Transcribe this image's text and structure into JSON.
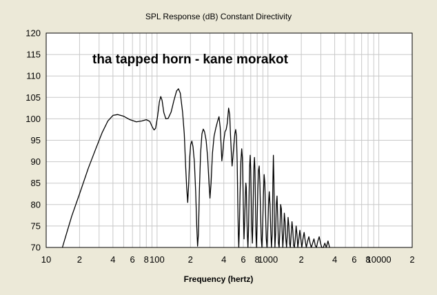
{
  "chart_data": {
    "type": "line",
    "title": "SPL Response (dB)   Constant Directivity",
    "xlabel": "Frequency (hertz)",
    "ylabel": "",
    "annotation": "tha tapped horn - kane morakot",
    "x_scale": "log",
    "xlim": [
      10,
      20000
    ],
    "ylim": [
      70,
      120
    ],
    "grid": true,
    "x_tick_labels": [
      {
        "value": 10,
        "label": "10"
      },
      {
        "value": 20,
        "label": "2"
      },
      {
        "value": 40,
        "label": "4"
      },
      {
        "value": 60,
        "label": "6"
      },
      {
        "value": 80,
        "label": "8"
      },
      {
        "value": 100,
        "label": "100"
      },
      {
        "value": 200,
        "label": "2"
      },
      {
        "value": 400,
        "label": "4"
      },
      {
        "value": 600,
        "label": "6"
      },
      {
        "value": 800,
        "label": "8"
      },
      {
        "value": 1000,
        "label": "1000"
      },
      {
        "value": 2000,
        "label": "2"
      },
      {
        "value": 4000,
        "label": "4"
      },
      {
        "value": 6000,
        "label": "6"
      },
      {
        "value": 8000,
        "label": "8"
      },
      {
        "value": 10000,
        "label": "10000"
      },
      {
        "value": 20000,
        "label": "2"
      }
    ],
    "y_ticks": [
      120,
      115,
      110,
      105,
      100,
      95,
      90,
      85,
      80,
      75,
      70
    ],
    "background_color": "#ffffff",
    "grid_color": "#c8c8c8",
    "line_color": "#000000",
    "series": [
      {
        "values_xy": [
          [
            14.0,
            70.0
          ],
          [
            15.0,
            72.6
          ],
          [
            17.0,
            77.3
          ],
          [
            20.0,
            82.5
          ],
          [
            24.0,
            88.5
          ],
          [
            28.0,
            93.0
          ],
          [
            32.0,
            96.8
          ],
          [
            36.0,
            99.5
          ],
          [
            40.0,
            100.8
          ],
          [
            44.0,
            101.0
          ],
          [
            50.0,
            100.6
          ],
          [
            57.0,
            99.8
          ],
          [
            65.0,
            99.3
          ],
          [
            73.0,
            99.5
          ],
          [
            80.0,
            99.8
          ],
          [
            86.0,
            99.4
          ],
          [
            91.0,
            98.0
          ],
          [
            94.0,
            97.4
          ],
          [
            97.0,
            97.8
          ],
          [
            101.0,
            100.5
          ],
          [
            105.0,
            104.0
          ],
          [
            108.0,
            105.2
          ],
          [
            111.0,
            104.3
          ],
          [
            115.0,
            101.5
          ],
          [
            120.0,
            100.0
          ],
          [
            126.0,
            100.1
          ],
          [
            134.0,
            101.6
          ],
          [
            142.0,
            104.3
          ],
          [
            150.0,
            106.5
          ],
          [
            156.0,
            107.0
          ],
          [
            162.0,
            106.0
          ],
          [
            170.0,
            101.5
          ],
          [
            176.0,
            96.5
          ],
          [
            181.0,
            89.0
          ],
          [
            185.0,
            84.0
          ],
          [
            189.0,
            80.5
          ],
          [
            193.0,
            85.0
          ],
          [
            197.0,
            91.0
          ],
          [
            201.0,
            94.0
          ],
          [
            206.0,
            94.8
          ],
          [
            211.0,
            93.5
          ],
          [
            217.0,
            90.0
          ],
          [
            223.0,
            83.0
          ],
          [
            228.0,
            75.0
          ],
          [
            232.0,
            70.3
          ],
          [
            236.0,
            73.0
          ],
          [
            241.0,
            83.5
          ],
          [
            247.0,
            92.0
          ],
          [
            254.0,
            96.5
          ],
          [
            261.0,
            97.6
          ],
          [
            268.0,
            97.0
          ],
          [
            277.0,
            95.0
          ],
          [
            286.0,
            91.0
          ],
          [
            294.0,
            85.0
          ],
          [
            300.0,
            81.5
          ],
          [
            307.0,
            85.0
          ],
          [
            316.0,
            92.0
          ],
          [
            327.0,
            96.0
          ],
          [
            340.0,
            98.0
          ],
          [
            352.0,
            99.5
          ],
          [
            362.0,
            100.5
          ],
          [
            371.0,
            98.0
          ],
          [
            378.0,
            94.0
          ],
          [
            384.0,
            90.2
          ],
          [
            391.0,
            92.0
          ],
          [
            400.0,
            95.0
          ],
          [
            410.0,
            97.0
          ],
          [
            420.0,
            97.5
          ],
          [
            430.0,
            99.0
          ],
          [
            442.0,
            102.5
          ],
          [
            452.0,
            101.0
          ],
          [
            460.0,
            96.0
          ],
          [
            468.0,
            92.0
          ],
          [
            475.0,
            89.0
          ],
          [
            483.0,
            91.0
          ],
          [
            493.0,
            94.0
          ],
          [
            503.0,
            96.5
          ],
          [
            512.0,
            97.5
          ],
          [
            520.0,
            96.0
          ],
          [
            528.0,
            90.0
          ],
          [
            535.0,
            80.0
          ],
          [
            541.0,
            73.0
          ],
          [
            546.0,
            70.0
          ],
          [
            552.0,
            74.0
          ],
          [
            560.0,
            82.0
          ],
          [
            570.0,
            90.0
          ],
          [
            580.0,
            93.0
          ],
          [
            588.0,
            91.0
          ],
          [
            596.0,
            84.0
          ],
          [
            603.0,
            76.0
          ],
          [
            609.0,
            72.0
          ],
          [
            616.0,
            76.0
          ],
          [
            624.0,
            81.0
          ],
          [
            632.0,
            85.0
          ],
          [
            638.0,
            84.0
          ],
          [
            645.0,
            78.0
          ],
          [
            652.0,
            73.0
          ],
          [
            660.0,
            70.0
          ],
          [
            668.0,
            74.0
          ],
          [
            676.0,
            82.0
          ],
          [
            684.0,
            89.0
          ],
          [
            692.0,
            91.5
          ],
          [
            700.0,
            88.0
          ],
          [
            708.0,
            80.0
          ],
          [
            716.0,
            74.0
          ],
          [
            724.0,
            71.0
          ],
          [
            732.0,
            76.0
          ],
          [
            740.0,
            84.0
          ],
          [
            748.0,
            89.0
          ],
          [
            756.0,
            91.0
          ],
          [
            764.0,
            88.0
          ],
          [
            772.0,
            80.0
          ],
          [
            780.0,
            73.0
          ],
          [
            788.0,
            70.0
          ],
          [
            798.0,
            75.0
          ],
          [
            810.0,
            83.0
          ],
          [
            822.0,
            88.0
          ],
          [
            834.0,
            89.0
          ],
          [
            846.0,
            85.0
          ],
          [
            858.0,
            78.0
          ],
          [
            870.0,
            72.0
          ],
          [
            882.0,
            70.0
          ],
          [
            896.0,
            75.0
          ],
          [
            910.0,
            82.0
          ],
          [
            924.0,
            87.0
          ],
          [
            938.0,
            85.0
          ],
          [
            952.0,
            78.0
          ],
          [
            966.0,
            72.0
          ],
          [
            980.0,
            70.0
          ],
          [
            996.0,
            74.0
          ],
          [
            1012.0,
            80.0
          ],
          [
            1028.0,
            83.0
          ],
          [
            1044.0,
            80.0
          ],
          [
            1060.0,
            74.0
          ],
          [
            1076.0,
            70.0
          ],
          [
            1092.0,
            73.0
          ],
          [
            1108.0,
            85.0
          ],
          [
            1120.0,
            91.5
          ],
          [
            1132.0,
            86.0
          ],
          [
            1144.0,
            76.0
          ],
          [
            1156.0,
            70.0
          ],
          [
            1172.0,
            73.0
          ],
          [
            1190.0,
            80.0
          ],
          [
            1208.0,
            82.0
          ],
          [
            1226.0,
            77.0
          ],
          [
            1244.0,
            71.0
          ],
          [
            1262.0,
            70.0
          ],
          [
            1282.0,
            74.0
          ],
          [
            1302.0,
            80.0
          ],
          [
            1322.0,
            79.0
          ],
          [
            1342.0,
            74.0
          ],
          [
            1362.0,
            70.0
          ],
          [
            1384.0,
            73.0
          ],
          [
            1406.0,
            78.0
          ],
          [
            1428.0,
            76.0
          ],
          [
            1450.0,
            72.0
          ],
          [
            1472.0,
            70.0
          ],
          [
            1496.0,
            73.0
          ],
          [
            1520.0,
            77.0
          ],
          [
            1544.0,
            75.0
          ],
          [
            1568.0,
            71.0
          ],
          [
            1592.0,
            70.0
          ],
          [
            1620.0,
            73.0
          ],
          [
            1648.0,
            76.0
          ],
          [
            1676.0,
            74.0
          ],
          [
            1704.0,
            70.5
          ],
          [
            1732.0,
            70.0
          ],
          [
            1764.0,
            72.0
          ],
          [
            1796.0,
            75.0
          ],
          [
            1828.0,
            73.0
          ],
          [
            1860.0,
            70.0
          ],
          [
            1900.0,
            72.0
          ],
          [
            1940.0,
            74.0
          ],
          [
            1980.0,
            72.0
          ],
          [
            2020.0,
            70.0
          ],
          [
            2070.0,
            72.0
          ],
          [
            2120.0,
            73.5
          ],
          [
            2170.0,
            71.5
          ],
          [
            2220.0,
            70.0
          ],
          [
            2280.0,
            71.5
          ],
          [
            2340.0,
            72.5
          ],
          [
            2400.0,
            71.0
          ],
          [
            2460.0,
            70.0
          ],
          [
            2530.0,
            71.0
          ],
          [
            2600.0,
            72.0
          ],
          [
            2670.0,
            70.5
          ],
          [
            2740.0,
            70.0
          ],
          [
            2820.0,
            71.5
          ],
          [
            2900.0,
            72.5
          ],
          [
            2980.0,
            71.0
          ],
          [
            3060.0,
            70.0
          ],
          [
            3160.0,
            70.0
          ],
          [
            3260.0,
            71.0
          ],
          [
            3360.0,
            70.0
          ],
          [
            3480.0,
            71.5
          ],
          [
            3600.0,
            70.0
          ]
        ]
      }
    ]
  }
}
